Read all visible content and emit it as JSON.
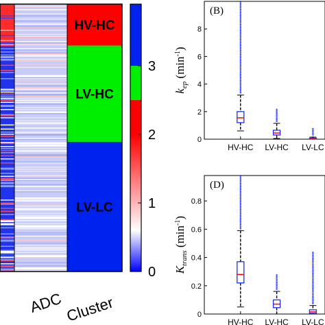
{
  "heatmap": {
    "column_labels": [
      "ADC",
      "Cluster"
    ],
    "cluster_labels": [
      "HV-HC",
      "LV-HC",
      "LV-LC"
    ],
    "cluster_colors": [
      "#ff0000",
      "#00ee00",
      "#0022ee"
    ],
    "cluster_boundaries": [
      0.0,
      0.155,
      0.515,
      1.0
    ]
  },
  "colorbar": {
    "ticks": [
      "0",
      "1",
      "2",
      "3"
    ],
    "segments": [
      {
        "from": 0,
        "to": 2,
        "type": "gradient"
      },
      {
        "from": 2,
        "to": 2.5,
        "color": "#ff0000"
      },
      {
        "from": 2.5,
        "to": 3,
        "color": "#00ee00"
      },
      {
        "from": 3,
        "to": 3.9,
        "color": "#0022ee"
      }
    ],
    "range": [
      0,
      3.9
    ]
  },
  "chart_data": [
    {
      "type": "box",
      "panel_label": "(B)",
      "ylabel_main": "k",
      "ylabel_sub": "ep",
      "ylabel_unit": " (min",
      "ylabel_exp": "-1",
      "ylabel_close": ")",
      "categories": [
        "HV-HC",
        "LV-HC",
        "LV-LC"
      ],
      "yticks": [
        "0",
        "2",
        "4",
        "6",
        "8"
      ],
      "ytick_values": [
        0,
        2,
        4,
        6,
        8
      ],
      "ylim": [
        0,
        10
      ],
      "boxes": [
        {
          "min": 0.6,
          "q1": 1.2,
          "median": 1.55,
          "q3": 2.0,
          "max": 3.2,
          "outlier_top": 10
        },
        {
          "min": 0.05,
          "q1": 0.3,
          "median": 0.45,
          "q3": 0.65,
          "max": 1.15,
          "outlier_top": 2.2
        },
        {
          "min": 0.0,
          "q1": 0.02,
          "median": 0.05,
          "q3": 0.08,
          "max": 0.15,
          "outlier_top": 0.8
        }
      ]
    },
    {
      "type": "box",
      "panel_label": "(D)",
      "ylabel_main": "K",
      "ylabel_sub": "trans",
      "ylabel_unit": " (min",
      "ylabel_exp": "-1",
      "ylabel_close": ")",
      "categories": [
        "HV-HC",
        "LV-HC",
        "LV-LC"
      ],
      "yticks": [
        "0",
        "0.2",
        "0.4",
        "0.6",
        "0.8"
      ],
      "ytick_values": [
        0,
        0.2,
        0.4,
        0.6,
        0.8
      ],
      "ylim": [
        0,
        0.98
      ],
      "boxes": [
        {
          "min": 0.05,
          "q1": 0.22,
          "median": 0.28,
          "q3": 0.37,
          "max": 0.59,
          "outlier_top": 0.98
        },
        {
          "min": 0.0,
          "q1": 0.045,
          "median": 0.07,
          "q3": 0.1,
          "max": 0.16,
          "outlier_top": 0.28
        },
        {
          "min": 0.0,
          "q1": 0.005,
          "median": 0.015,
          "q3": 0.03,
          "max": 0.06,
          "outlier_top": 0.44
        }
      ]
    }
  ]
}
